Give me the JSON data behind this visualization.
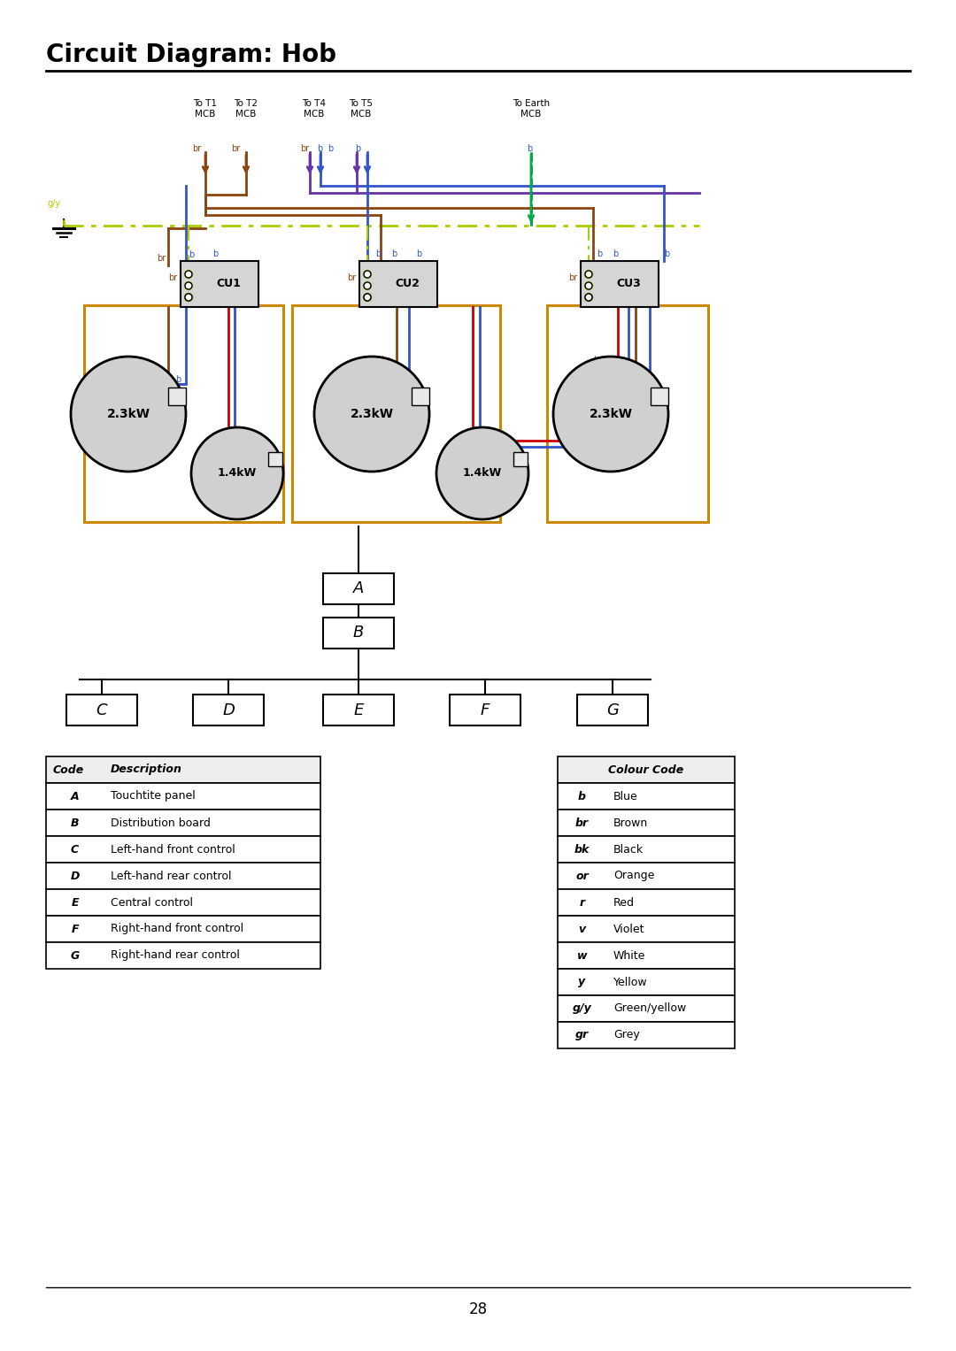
{
  "title": "Circuit Diagram: Hob",
  "page_number": "28",
  "background_color": "#ffffff",
  "colors": {
    "blue": "#3355cc",
    "brown": "#8B4513",
    "orange": "#cc8800",
    "red": "#cc0000",
    "green_yellow": "#aacc00",
    "green": "#00aa44",
    "purple": "#6633aa",
    "gray": "#888888",
    "dark": "#222222"
  },
  "code_table": {
    "headers": [
      "Code",
      "Description"
    ],
    "rows": [
      [
        "A",
        "Touchtite panel"
      ],
      [
        "B",
        "Distribution board"
      ],
      [
        "C",
        "Left-hand front control"
      ],
      [
        "D",
        "Left-hand rear control"
      ],
      [
        "E",
        "Central control"
      ],
      [
        "F",
        "Right-hand front control"
      ],
      [
        "G",
        "Right-hand rear control"
      ]
    ]
  },
  "colour_table": {
    "header": "Colour Code",
    "rows": [
      [
        "b",
        "Blue"
      ],
      [
        "br",
        "Brown"
      ],
      [
        "bk",
        "Black"
      ],
      [
        "or",
        "Orange"
      ],
      [
        "r",
        "Red"
      ],
      [
        "v",
        "Violet"
      ],
      [
        "w",
        "White"
      ],
      [
        "y",
        "Yellow"
      ],
      [
        "g/y",
        "Green/yellow"
      ],
      [
        "gr",
        "Grey"
      ]
    ]
  }
}
